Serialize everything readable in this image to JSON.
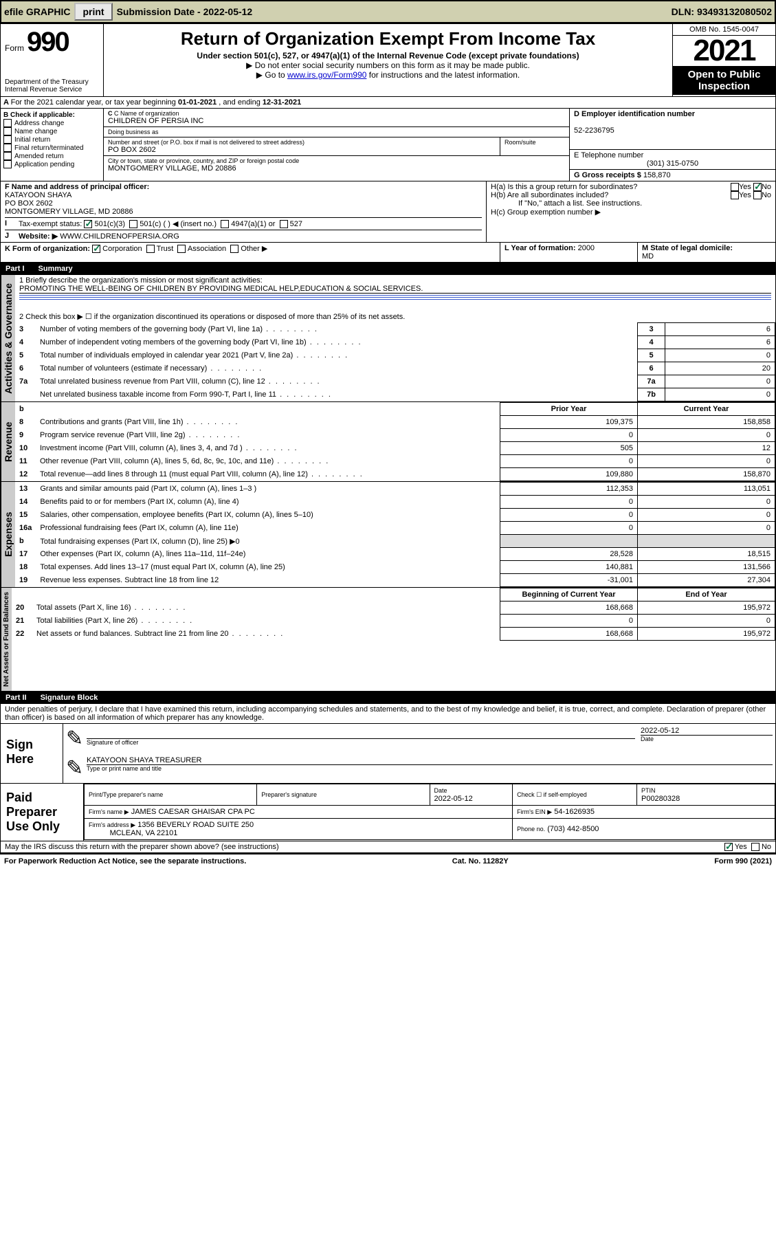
{
  "topbar": {
    "efile_label": "efile GRAPHIC",
    "print_btn": "print",
    "submission_label": "Submission Date - ",
    "submission_date": "2022-05-12",
    "dln_label": "DLN: ",
    "dln": "93493132080502"
  },
  "header": {
    "form_word": "Form",
    "form_no": "990",
    "dept": "Department of the Treasury",
    "irs": "Internal Revenue Service",
    "title": "Return of Organization Exempt From Income Tax",
    "sub1": "Under section 501(c), 527, or 4947(a)(1) of the Internal Revenue Code (except private foundations)",
    "note1": "▶ Do not enter social security numbers on this form as it may be made public.",
    "note2_pre": "▶ Go to ",
    "note2_link": "www.irs.gov/Form990",
    "note2_post": " for instructions and the latest information.",
    "omb": "OMB No. 1545-0047",
    "year": "2021",
    "open1": "Open to Public",
    "open2": "Inspection"
  },
  "lineA": {
    "text_pre": "For the 2021 calendar year, or tax year beginning ",
    "begin": "01-01-2021",
    "mid": " , and ending ",
    "end": "12-31-2021"
  },
  "B": {
    "hdr": "B Check if applicable:",
    "items": [
      "Address change",
      "Name change",
      "Initial return",
      "Final return/terminated",
      "Amended return",
      "Application pending"
    ]
  },
  "C": {
    "name_lbl": "C Name of organization",
    "name": "CHILDREN OF PERSIA INC",
    "dba_lbl": "Doing business as",
    "addr_lbl": "Number and street (or P.O. box if mail is not delivered to street address)",
    "room_lbl": "Room/suite",
    "addr": "PO BOX 2602",
    "city_lbl": "City or town, state or province, country, and ZIP or foreign postal code",
    "city": "MONTGOMERY VILLAGE, MD  20886"
  },
  "D": {
    "lbl": "D Employer identification number",
    "val": "52-2236795"
  },
  "E": {
    "lbl": "E Telephone number",
    "val": "(301) 315-0750"
  },
  "G": {
    "lbl": "G Gross receipts $",
    "val": "158,870"
  },
  "F": {
    "lbl": "F  Name and address of principal officer:",
    "name": "KATAYOON SHAYA",
    "addr1": "PO BOX 2602",
    "addr2": "MONTGOMERY VILLAGE, MD  20886"
  },
  "H": {
    "a_lbl": "H(a)  Is this a group return for subordinates?",
    "b_lbl": "H(b)  Are all subordinates included?",
    "b_note": "If \"No,\" attach a list. See instructions.",
    "c_lbl": "H(c)  Group exemption number ▶",
    "yes": "Yes",
    "no": "No"
  },
  "I": {
    "lbl": "Tax-exempt status:",
    "opts": [
      "501(c)(3)",
      "501(c) (  ) ◀ (insert no.)",
      "4947(a)(1) or",
      "527"
    ]
  },
  "J": {
    "lbl": "Website: ▶",
    "val": "WWW.CHILDRENOFPERSIA.ORG"
  },
  "K": {
    "lbl": "K Form of organization:",
    "opts": [
      "Corporation",
      "Trust",
      "Association",
      "Other ▶"
    ]
  },
  "L": {
    "lbl": "L Year of formation:",
    "val": "2000"
  },
  "M": {
    "lbl": "M State of legal domicile:",
    "val": "MD"
  },
  "part1": {
    "hdr_no": "Part I",
    "hdr_title": "Summary",
    "line1_lbl": "1  Briefly describe the organization's mission or most significant activities:",
    "line1_val": "PROMOTING THE WELL-BEING OF CHILDREN BY PROVIDING MEDICAL HELP,EDUCATION & SOCIAL SERVICES.",
    "line2": "2  Check this box ▶ ☐  if the organization discontinued its operations or disposed of more than 25% of its net assets.",
    "side_act": "Activities & Governance",
    "side_rev": "Revenue",
    "side_exp": "Expenses",
    "side_net": "Net Assets or Fund Balances",
    "rows_gov": [
      {
        "n": "3",
        "t": "Number of voting members of the governing body (Part VI, line 1a)",
        "c": "3",
        "v": "6"
      },
      {
        "n": "4",
        "t": "Number of independent voting members of the governing body (Part VI, line 1b)",
        "c": "4",
        "v": "6"
      },
      {
        "n": "5",
        "t": "Total number of individuals employed in calendar year 2021 (Part V, line 2a)",
        "c": "5",
        "v": "0"
      },
      {
        "n": "6",
        "t": "Total number of volunteers (estimate if necessary)",
        "c": "6",
        "v": "20"
      },
      {
        "n": "7a",
        "t": "Total unrelated business revenue from Part VIII, column (C), line 12",
        "c": "7a",
        "v": "0"
      },
      {
        "n": "",
        "t": "Net unrelated business taxable income from Form 990-T, Part I, line 11",
        "c": "7b",
        "v": "0"
      }
    ],
    "col_prior": "Prior Year",
    "col_curr": "Current Year",
    "rows_rev": [
      {
        "n": "8",
        "t": "Contributions and grants (Part VIII, line 1h)",
        "p": "109,375",
        "c": "158,858"
      },
      {
        "n": "9",
        "t": "Program service revenue (Part VIII, line 2g)",
        "p": "0",
        "c": "0"
      },
      {
        "n": "10",
        "t": "Investment income (Part VIII, column (A), lines 3, 4, and 7d )",
        "p": "505",
        "c": "12"
      },
      {
        "n": "11",
        "t": "Other revenue (Part VIII, column (A), lines 5, 6d, 8c, 9c, 10c, and 11e)",
        "p": "0",
        "c": "0"
      },
      {
        "n": "12",
        "t": "Total revenue—add lines 8 through 11 (must equal Part VIII, column (A), line 12)",
        "p": "109,880",
        "c": "158,870"
      }
    ],
    "rows_exp": [
      {
        "n": "13",
        "t": "Grants and similar amounts paid (Part IX, column (A), lines 1–3 )",
        "p": "112,353",
        "c": "113,051"
      },
      {
        "n": "14",
        "t": "Benefits paid to or for members (Part IX, column (A), line 4)",
        "p": "0",
        "c": "0"
      },
      {
        "n": "15",
        "t": "Salaries, other compensation, employee benefits (Part IX, column (A), lines 5–10)",
        "p": "0",
        "c": "0"
      },
      {
        "n": "16a",
        "t": "Professional fundraising fees (Part IX, column (A), line 11e)",
        "p": "0",
        "c": "0"
      },
      {
        "n": "b",
        "t": "Total fundraising expenses (Part IX, column (D), line 25) ▶0",
        "p": "",
        "c": "",
        "shade": true
      },
      {
        "n": "17",
        "t": "Other expenses (Part IX, column (A), lines 11a–11d, 11f–24e)",
        "p": "28,528",
        "c": "18,515"
      },
      {
        "n": "18",
        "t": "Total expenses. Add lines 13–17 (must equal Part IX, column (A), line 25)",
        "p": "140,881",
        "c": "131,566"
      },
      {
        "n": "19",
        "t": "Revenue less expenses. Subtract line 18 from line 12",
        "p": "-31,001",
        "c": "27,304"
      }
    ],
    "col_begin": "Beginning of Current Year",
    "col_end": "End of Year",
    "rows_net": [
      {
        "n": "20",
        "t": "Total assets (Part X, line 16)",
        "p": "168,668",
        "c": "195,972"
      },
      {
        "n": "21",
        "t": "Total liabilities (Part X, line 26)",
        "p": "0",
        "c": "0"
      },
      {
        "n": "22",
        "t": "Net assets or fund balances. Subtract line 21 from line 20",
        "p": "168,668",
        "c": "195,972"
      }
    ]
  },
  "part2": {
    "hdr_no": "Part II",
    "hdr_title": "Signature Block",
    "decl": "Under penalties of perjury, I declare that I have examined this return, including accompanying schedules and statements, and to the best of my knowledge and belief, it is true, correct, and complete. Declaration of preparer (other than officer) is based on all information of which preparer has any knowledge.",
    "sign_here": "Sign Here",
    "sig_officer": "Signature of officer",
    "sig_date": "Date",
    "sig_date_val": "2022-05-12",
    "officer_name": "KATAYOON SHAYA  TREASURER",
    "officer_type": "Type or print name and title",
    "paid": "Paid Preparer Use Only",
    "prep_name_lbl": "Print/Type preparer's name",
    "prep_sig_lbl": "Preparer's signature",
    "prep_date_lbl": "Date",
    "prep_date_val": "2022-05-12",
    "check_self": "Check ☐ if self-employed",
    "ptin_lbl": "PTIN",
    "ptin": "P00280328",
    "firm_name_lbl": "Firm's name   ▶",
    "firm_name": "JAMES CAESAR GHAISAR CPA PC",
    "firm_ein_lbl": "Firm's EIN ▶",
    "firm_ein": "54-1626935",
    "firm_addr_lbl": "Firm's address ▶",
    "firm_addr1": "1356 BEVERLY ROAD SUITE 250",
    "firm_addr2": "MCLEAN, VA  22101",
    "phone_lbl": "Phone no.",
    "phone": "(703) 442-8500",
    "discuss": "May the IRS discuss this return with the preparer shown above? (see instructions)",
    "yes": "Yes",
    "no": "No"
  },
  "footer": {
    "left": "For Paperwork Reduction Act Notice, see the separate instructions.",
    "mid": "Cat. No. 11282Y",
    "right": "Form 990 (2021)"
  }
}
